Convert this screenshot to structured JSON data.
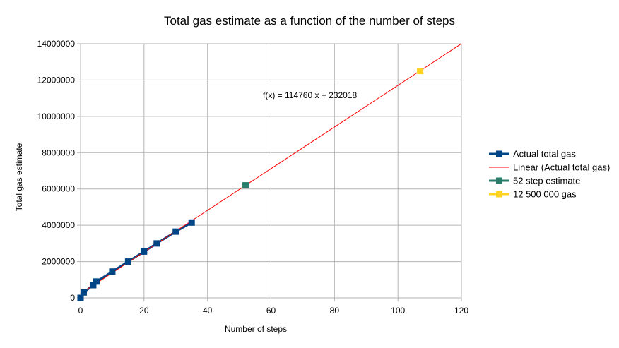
{
  "chart_data": {
    "type": "scatter",
    "title": "Total gas estimate as a function of the number of steps",
    "xlabel": "Number of steps",
    "ylabel": "Total gas estimate",
    "xlim": [
      0,
      120
    ],
    "ylim": [
      0,
      14000000
    ],
    "x_ticks": [
      0,
      20,
      40,
      60,
      80,
      100,
      120
    ],
    "y_ticks": [
      0,
      2000000,
      4000000,
      6000000,
      8000000,
      10000000,
      12000000,
      14000000
    ],
    "x_tick_labels": [
      "0",
      "20",
      "40",
      "60",
      "80",
      "100",
      "120"
    ],
    "y_tick_labels": [
      "0",
      "2000000",
      "4000000",
      "6000000",
      "8000000",
      "10000000",
      "12000000",
      "14000000"
    ],
    "grid": true,
    "legend_position": "right",
    "annotation": "f(x) = 114760 x + 232018",
    "series": [
      {
        "name": "Actual total gas",
        "kind": "line-marker",
        "color": "#004586",
        "points": [
          {
            "x": 0,
            "y": 0
          },
          {
            "x": 1,
            "y": 300000
          },
          {
            "x": 4,
            "y": 700000
          },
          {
            "x": 5,
            "y": 900000
          },
          {
            "x": 10,
            "y": 1450000
          },
          {
            "x": 15,
            "y": 2000000
          },
          {
            "x": 20,
            "y": 2550000
          },
          {
            "x": 24,
            "y": 3000000
          },
          {
            "x": 30,
            "y": 3650000
          },
          {
            "x": 35,
            "y": 4150000
          }
        ]
      },
      {
        "name": "Linear (Actual total gas)",
        "kind": "trendline",
        "color": "#ff0000",
        "slope": 114760,
        "intercept": 232018,
        "x_range": [
          0,
          120
        ]
      },
      {
        "name": "52 step estimate",
        "kind": "marker",
        "color": "#2a7d6a",
        "points": [
          {
            "x": 52,
            "y": 6200000
          }
        ]
      },
      {
        "name": "12 500 000 gas",
        "kind": "marker",
        "color": "#ffd320",
        "points": [
          {
            "x": 107,
            "y": 12500000
          }
        ]
      }
    ]
  }
}
